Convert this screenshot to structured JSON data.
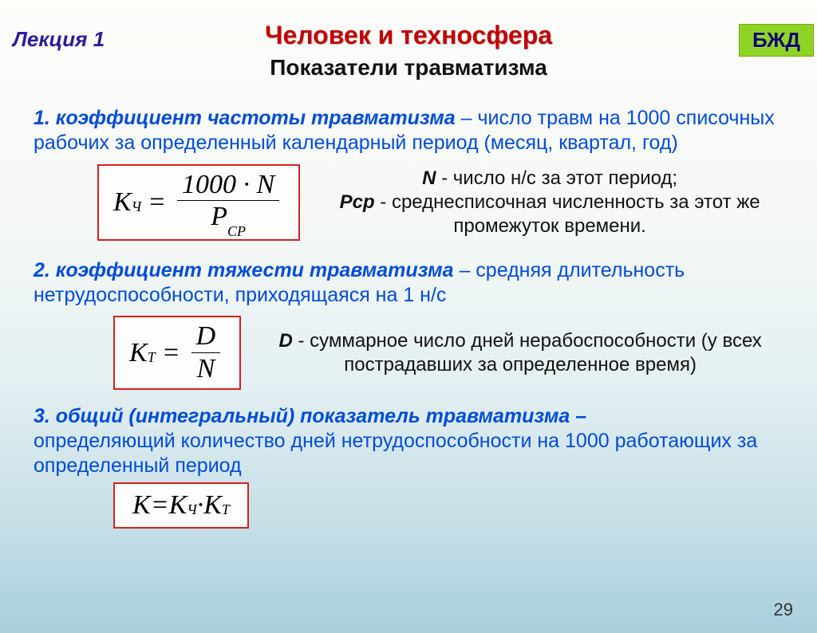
{
  "header": {
    "lecture": "Лекция 1",
    "badge": "БЖД",
    "title": "Человек и техносфера",
    "subtitle": "Показатели травматизма"
  },
  "section1": {
    "num": "1. коэффициент частоты травматизма",
    "desc": " – число травм на 1000 списочных рабочих за определенный календарный период (месяц, квартал, год)",
    "formula": {
      "lhs_k": "K",
      "lhs_sub": "Ч",
      "num": "1000 · N",
      "den_p": "P",
      "den_sub": "СР"
    },
    "defs": {
      "n_var": "N",
      "n_text": " - число н/с за этот период;",
      "p_var": "Pср",
      "p_text": " - среднесписочная численность за этот же промежуток времени."
    }
  },
  "section2": {
    "num": "2. коэффициент тяжести травматизма",
    "desc": " – средняя длительность нетрудоспособности, приходящаяся на 1 н/с",
    "formula": {
      "lhs_k": "K",
      "lhs_sub": "Т",
      "num": "D",
      "den": "N"
    },
    "defs": {
      "d_var": "D",
      "d_text": " - суммарное число дней нерабоспособности (у всех пострадавших за определенное время)"
    }
  },
  "section3": {
    "num": "3. общий (интегральный) показатель травматизма –",
    "desc": "определяющий количество дней нетрудоспособности на 1000 работающих за определенный период",
    "formula": {
      "k": "K",
      "eq": " = ",
      "k1": "K",
      "s1": "Ч",
      "dot": " · ",
      "k2": "K",
      "s2": "Т"
    }
  },
  "page": "29",
  "colors": {
    "accent_red": "#c00000",
    "link_blue": "#004cd6",
    "badge_bg": "#8fd424",
    "border_red": "#d62020"
  }
}
